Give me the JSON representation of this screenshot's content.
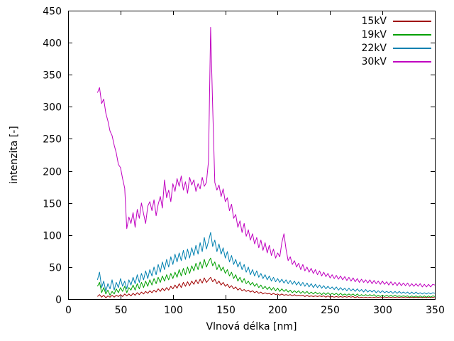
{
  "chart_data": {
    "type": "line",
    "title": "",
    "xlabel": "Vlnová délka [nm]",
    "ylabel": "intenzita [-]",
    "xlim": [
      0,
      350
    ],
    "ylim": [
      0,
      450
    ],
    "xticks": [
      0,
      50,
      100,
      150,
      200,
      250,
      300,
      350
    ],
    "yticks": [
      0,
      50,
      100,
      150,
      200,
      250,
      300,
      350,
      400,
      450
    ],
    "grid": false,
    "legend_position": "top-right",
    "x_start": 28,
    "x_step": 2,
    "series": [
      {
        "name": "15kV",
        "color": "#a00000",
        "values": [
          4,
          7,
          3,
          6,
          2,
          5,
          3,
          6,
          3,
          6,
          4,
          7,
          4,
          8,
          5,
          8,
          5,
          9,
          6,
          10,
          7,
          11,
          8,
          12,
          9,
          13,
          10,
          14,
          11,
          16,
          12,
          17,
          13,
          18,
          14,
          20,
          16,
          22,
          17,
          24,
          18,
          26,
          20,
          27,
          21,
          28,
          23,
          30,
          24,
          31,
          25,
          33,
          26,
          30,
          34,
          27,
          31,
          24,
          28,
          22,
          26,
          20,
          23,
          18,
          21,
          16,
          19,
          14,
          17,
          13,
          15,
          12,
          14,
          11,
          13,
          10,
          12,
          9,
          11,
          8,
          10,
          8,
          9,
          7,
          9,
          7,
          8,
          6,
          8,
          6,
          7,
          6,
          7,
          5,
          7,
          5,
          6,
          5,
          6,
          4,
          6,
          4,
          5,
          4,
          5,
          4,
          5,
          4,
          5,
          3,
          5,
          3,
          4,
          3,
          4,
          3,
          4,
          3,
          4,
          3,
          4,
          3,
          4,
          2,
          4,
          2,
          3,
          2,
          3,
          2,
          3,
          2,
          3,
          2,
          3,
          2,
          3,
          2,
          3,
          2,
          3,
          2,
          3,
          2,
          3,
          2,
          3,
          2,
          3,
          2,
          3,
          2,
          3,
          2,
          3,
          2,
          3,
          2,
          3,
          2,
          3,
          2
        ]
      },
      {
        "name": "19kV",
        "color": "#00a000",
        "values": [
          20,
          26,
          10,
          18,
          8,
          14,
          6,
          12,
          8,
          16,
          10,
          18,
          12,
          20,
          10,
          18,
          14,
          22,
          14,
          24,
          16,
          26,
          18,
          28,
          20,
          30,
          22,
          32,
          24,
          34,
          26,
          36,
          28,
          38,
          30,
          40,
          32,
          42,
          34,
          46,
          36,
          48,
          38,
          50,
          40,
          52,
          44,
          56,
          46,
          58,
          48,
          62,
          50,
          58,
          64,
          52,
          58,
          46,
          54,
          44,
          50,
          40,
          46,
          36,
          42,
          32,
          38,
          28,
          34,
          26,
          32,
          24,
          28,
          22,
          26,
          20,
          24,
          18,
          22,
          16,
          20,
          15,
          19,
          14,
          18,
          13,
          17,
          12,
          16,
          12,
          15,
          11,
          14,
          10,
          13,
          10,
          13,
          9,
          12,
          9,
          12,
          8,
          11,
          8,
          11,
          8,
          10,
          7,
          10,
          7,
          10,
          7,
          9,
          7,
          9,
          6,
          9,
          6,
          8,
          6,
          8,
          6,
          8,
          5,
          8,
          5,
          7,
          5,
          7,
          5,
          7,
          5,
          7,
          4,
          6,
          4,
          6,
          4,
          6,
          4,
          6,
          4,
          6,
          4,
          5,
          4,
          5,
          4,
          5,
          3,
          5,
          3,
          5,
          3,
          5,
          3,
          5,
          3,
          5,
          3,
          5,
          4
        ]
      },
      {
        "name": "22kV",
        "color": "#0080b0",
        "values": [
          30,
          42,
          18,
          28,
          12,
          24,
          16,
          30,
          14,
          26,
          18,
          32,
          20,
          28,
          16,
          30,
          22,
          34,
          24,
          38,
          26,
          40,
          30,
          44,
          32,
          46,
          36,
          50,
          38,
          54,
          42,
          58,
          46,
          62,
          50,
          66,
          54,
          70,
          58,
          72,
          60,
          76,
          62,
          78,
          64,
          80,
          68,
          84,
          70,
          88,
          74,
          96,
          78,
          90,
          104,
          82,
          92,
          74,
          86,
          70,
          80,
          64,
          74,
          58,
          68,
          54,
          62,
          50,
          58,
          46,
          54,
          42,
          50,
          38,
          46,
          36,
          44,
          34,
          40,
          32,
          38,
          30,
          36,
          28,
          34,
          27,
          32,
          26,
          31,
          25,
          30,
          24,
          29,
          23,
          28,
          22,
          27,
          21,
          26,
          20,
          25,
          19,
          24,
          18,
          23,
          18,
          22,
          17,
          21,
          16,
          20,
          16,
          19,
          15,
          19,
          14,
          18,
          14,
          17,
          13,
          17,
          13,
          16,
          12,
          16,
          12,
          15,
          11,
          15,
          11,
          14,
          11,
          14,
          10,
          13,
          10,
          13,
          10,
          12,
          10,
          12,
          9,
          12,
          9,
          12,
          9,
          11,
          9,
          11,
          8,
          11,
          8,
          11,
          8,
          10,
          8,
          10,
          8,
          10,
          8,
          10,
          9
        ]
      },
      {
        "name": "30kV",
        "color": "#c000c0",
        "values": [
          322,
          330,
          305,
          312,
          290,
          278,
          262,
          255,
          240,
          228,
          210,
          205,
          188,
          173,
          110,
          128,
          118,
          135,
          112,
          140,
          126,
          150,
          133,
          118,
          145,
          152,
          138,
          155,
          130,
          148,
          160,
          142,
          186,
          158,
          170,
          152,
          180,
          168,
          188,
          176,
          192,
          170,
          183,
          165,
          190,
          178,
          186,
          168,
          180,
          172,
          190,
          176,
          182,
          215,
          424,
          300,
          182,
          170,
          178,
          160,
          172,
          152,
          158,
          138,
          148,
          126,
          132,
          112,
          122,
          104,
          118,
          98,
          108,
          92,
          102,
          86,
          96,
          80,
          92,
          76,
          88,
          72,
          84,
          68,
          78,
          64,
          72,
          66,
          88,
          102,
          78,
          60,
          66,
          54,
          60,
          50,
          56,
          46,
          54,
          44,
          50,
          42,
          48,
          40,
          46,
          38,
          44,
          36,
          42,
          35,
          40,
          33,
          38,
          32,
          37,
          31,
          36,
          30,
          35,
          29,
          34,
          28,
          33,
          27,
          32,
          26,
          31,
          26,
          30,
          25,
          30,
          24,
          29,
          24,
          28,
          23,
          28,
          23,
          27,
          22,
          27,
          22,
          26,
          21,
          26,
          21,
          25,
          21,
          25,
          20,
          24,
          20,
          24,
          20,
          24,
          19,
          23,
          19,
          23,
          19,
          23,
          22
        ]
      }
    ]
  }
}
